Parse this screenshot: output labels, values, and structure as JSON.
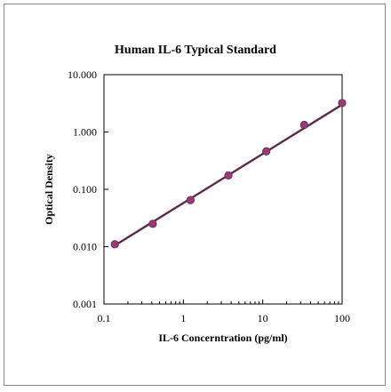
{
  "chart_data": {
    "type": "scatter",
    "title": "Human IL-6 Typical Standard",
    "xlabel": "IL-6 Concerntration (pg/ml)",
    "ylabel": "Optical Density",
    "x_scale": "log",
    "y_scale": "log",
    "xlim": [
      0.1,
      100
    ],
    "ylim": [
      0.001,
      10
    ],
    "x_ticks": [
      0.1,
      1,
      10,
      100
    ],
    "x_tick_labels": [
      "0.1",
      "1",
      "10",
      "100"
    ],
    "y_ticks": [
      0.001,
      0.01,
      0.1,
      1,
      10
    ],
    "y_tick_labels": [
      "0.001",
      "0.010",
      "0.100",
      "1.000",
      "10.000"
    ],
    "grid": false,
    "series": [
      {
        "x": [
          0.137,
          0.412,
          1.23,
          3.7,
          11.1,
          33.3,
          100
        ],
        "y": [
          0.011,
          0.025,
          0.065,
          0.175,
          0.46,
          1.33,
          3.2
        ]
      }
    ],
    "fit_line": {
      "x": [
        0.137,
        100
      ],
      "y": [
        0.0105,
        3.0
      ]
    },
    "colors": {
      "line": "#5a2a4a",
      "marker": "#9a3a78"
    }
  }
}
